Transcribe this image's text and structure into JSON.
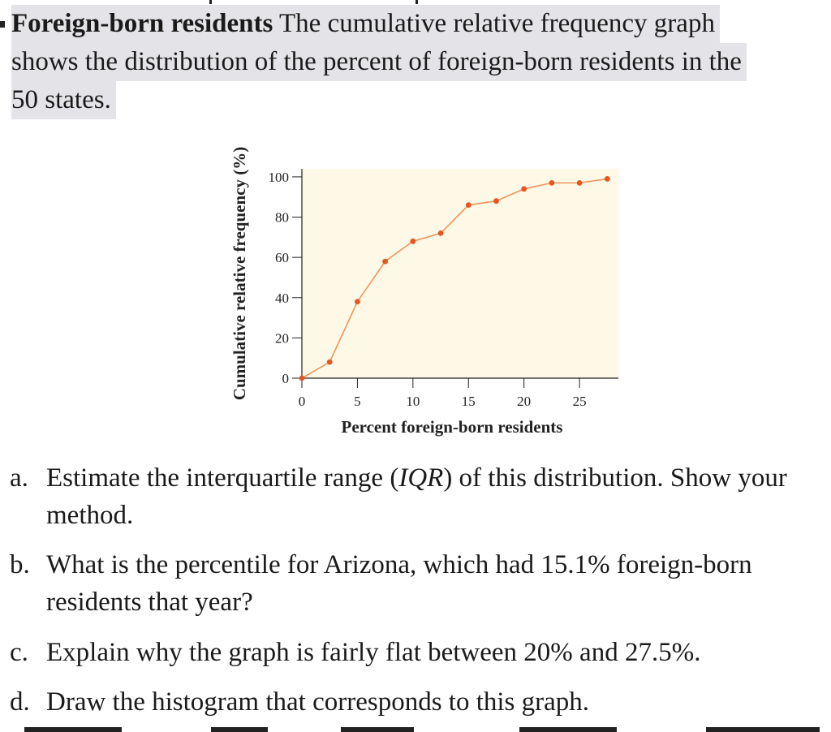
{
  "intro": {
    "title_bold": "Foreign-born residents",
    "line1_rest": " The cumulative relative frequency graph",
    "line2": "shows the distribution of the percent of foreign-born residents in the",
    "line3": "50 states."
  },
  "questions": [
    {
      "letter": "a.",
      "text": "Estimate the interquartile range (",
      "em": "IQR",
      "text_after": ") of this distribution. Show your method."
    },
    {
      "letter": "b.",
      "text": "What is the percentile for Arizona, which had 15.1% foreign-born residents that year?"
    },
    {
      "letter": "c.",
      "text": "Explain why the graph is fairly flat between 20% and 27.5%."
    },
    {
      "letter": "d.",
      "text": "Draw the histogram that corresponds to this graph."
    }
  ],
  "chart_data": {
    "type": "line",
    "title": "",
    "xlabel": "Percent foreign-born residents",
    "ylabel": "Cumulative relative frequency (%)",
    "xlim": [
      0,
      28.5
    ],
    "ylim": [
      0,
      104
    ],
    "xticks": [
      0,
      5,
      10,
      15,
      20,
      25
    ],
    "yticks": [
      0,
      20,
      40,
      60,
      80,
      100
    ],
    "grid": false,
    "legend": "none",
    "series": [
      {
        "x": [
          0,
          2.5,
          5,
          7.5,
          10,
          12.5,
          15,
          17.5,
          20,
          22.5,
          25,
          27.5
        ],
        "y": [
          0,
          8,
          38,
          58,
          68,
          72,
          86,
          88,
          94,
          97,
          97,
          99
        ]
      }
    ],
    "colors": {
      "plot_background": "#fdf9e6",
      "line": "#f0955a",
      "marker": "#e65520",
      "axis": "#222222"
    }
  }
}
